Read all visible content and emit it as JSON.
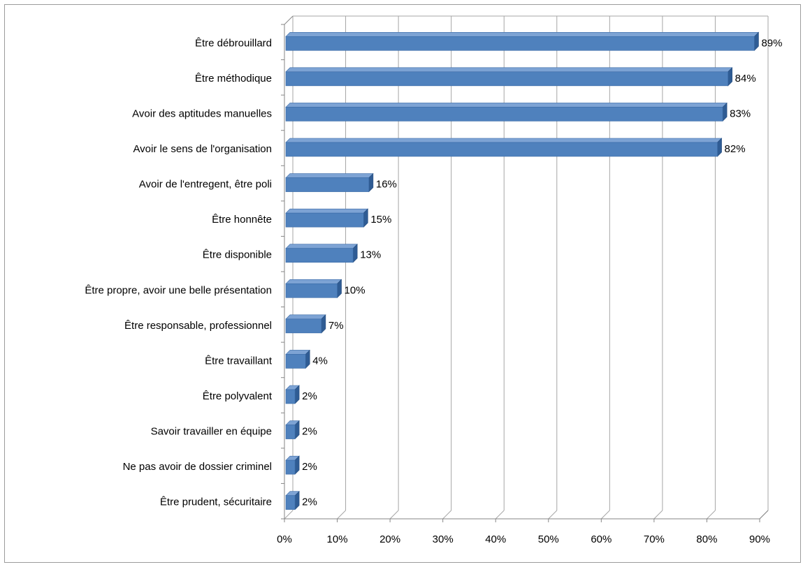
{
  "chart_data": {
    "type": "bar",
    "orientation": "horizontal",
    "style": "3d",
    "categories": [
      "Être débrouillard",
      "Être méthodique",
      "Avoir des aptitudes  manuelles",
      "Avoir le sens de l'organisation",
      "Avoir de l'entregent, être poli",
      "Être honnête",
      "Être disponible",
      "Être propre, avoir une belle présentation",
      "Être responsable, professionnel",
      "Être travaillant",
      "Être polyvalent",
      "Savoir travailler  en équipe",
      "Ne pas avoir de dossier criminel",
      "Être prudent, sécuritaire"
    ],
    "values": [
      89,
      84,
      83,
      82,
      16,
      15,
      13,
      10,
      7,
      4,
      2,
      2,
      2,
      2
    ],
    "data_labels": [
      "89%",
      "84%",
      "83%",
      "82%",
      "16%",
      "15%",
      "13%",
      "10%",
      "7%",
      "4%",
      "2%",
      "2%",
      "2%",
      "2%"
    ],
    "xlim": [
      0,
      90
    ],
    "xticks": [
      "0%",
      "10%",
      "20%",
      "30%",
      "40%",
      "50%",
      "60%",
      "70%",
      "80%",
      "90%"
    ],
    "grid": true,
    "legend": "none",
    "colors": {
      "bar_front": "#4f81bd",
      "bar_top": "#7da3d4",
      "bar_side": "#2f5c94",
      "gridline": "#a6a6a6",
      "wall": "#ffffff"
    }
  }
}
